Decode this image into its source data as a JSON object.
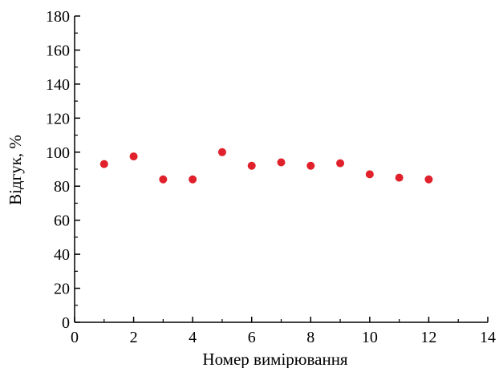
{
  "chart_data": {
    "type": "scatter",
    "xlabel": "Номер вимірювання",
    "ylabel": "Відгук, %",
    "xlim": [
      0,
      14
    ],
    "ylim": [
      0,
      180
    ],
    "xticks": [
      0,
      2,
      4,
      6,
      8,
      10,
      12,
      14
    ],
    "yticks": [
      0,
      20,
      40,
      60,
      80,
      100,
      120,
      140,
      160,
      180
    ],
    "grid": false,
    "legend": "none",
    "marker_color": "#e0202a",
    "series": [
      {
        "points": [
          {
            "x": 1,
            "y": 93
          },
          {
            "x": 2,
            "y": 97.5
          },
          {
            "x": 3,
            "y": 84
          },
          {
            "x": 4,
            "y": 84
          },
          {
            "x": 5,
            "y": 100
          },
          {
            "x": 6,
            "y": 92
          },
          {
            "x": 7,
            "y": 94
          },
          {
            "x": 8,
            "y": 92
          },
          {
            "x": 9,
            "y": 93.5
          },
          {
            "x": 10,
            "y": 87
          },
          {
            "x": 11,
            "y": 85
          },
          {
            "x": 12,
            "y": 84
          }
        ]
      }
    ]
  }
}
